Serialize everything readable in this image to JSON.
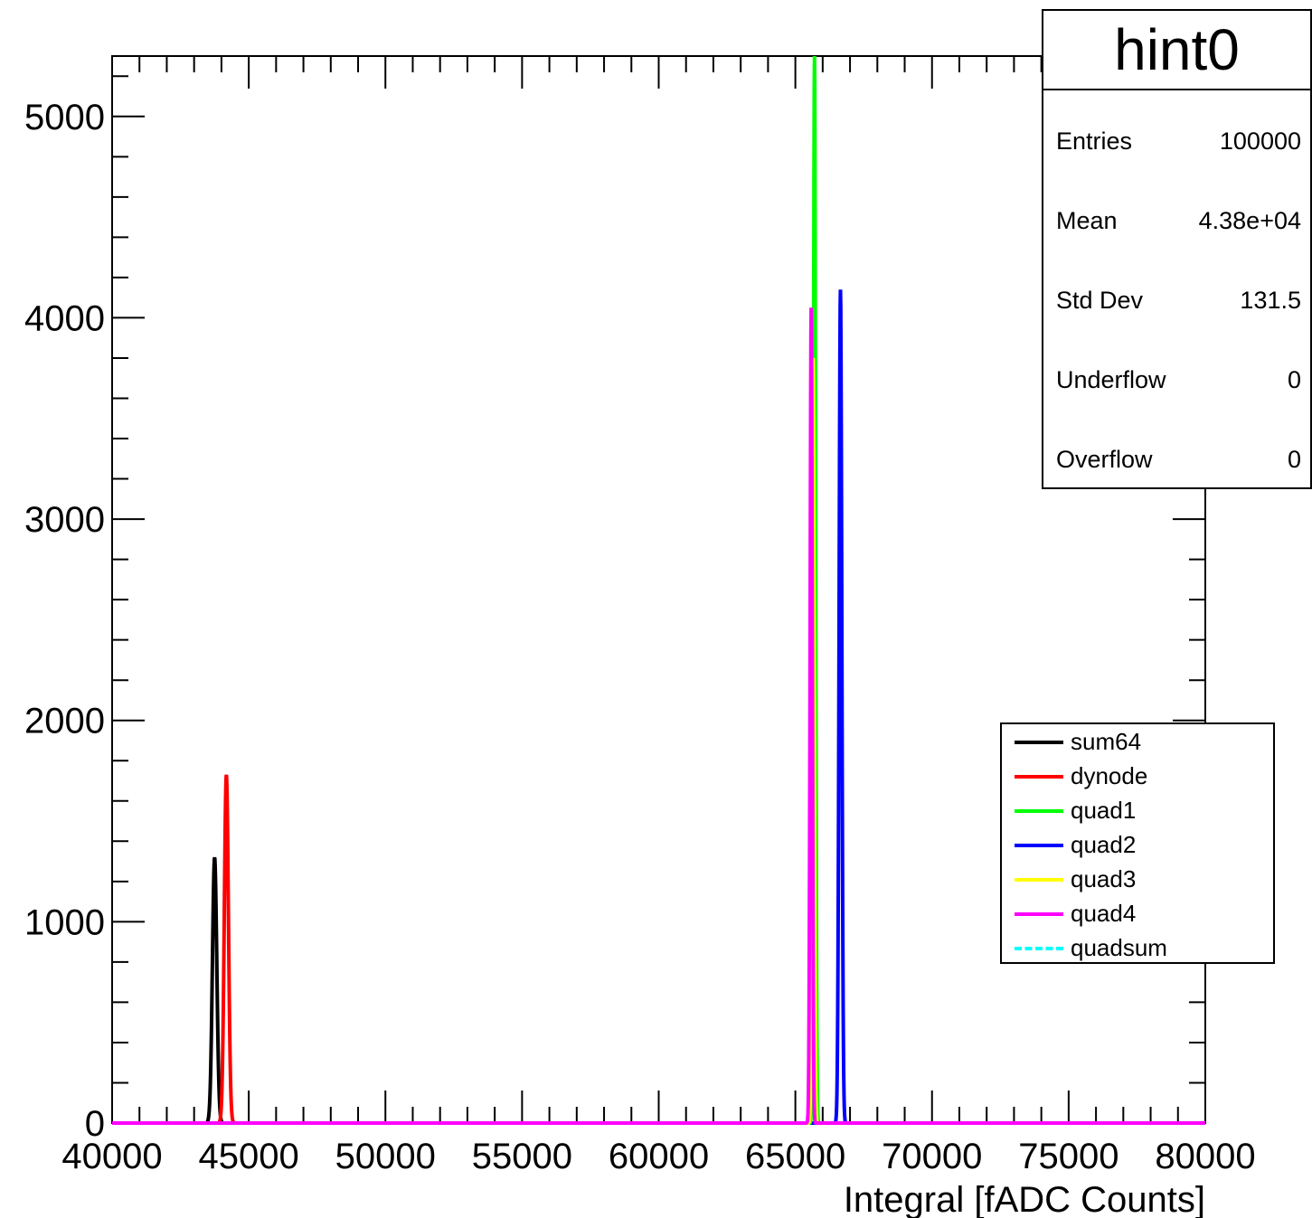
{
  "chart_data": {
    "type": "line",
    "title": "",
    "xlabel": "Integral [fADC Counts]",
    "ylabel": "",
    "xlim": [
      40000,
      80000
    ],
    "ylim": [
      0,
      5300
    ],
    "x_ticks": [
      "40000",
      "45000",
      "50000",
      "55000",
      "60000",
      "65000",
      "70000",
      "75000",
      "80000"
    ],
    "y_ticks": [
      "0",
      "1000",
      "2000",
      "3000",
      "4000",
      "5000"
    ],
    "grid": false,
    "legend_position": "right",
    "series": [
      {
        "name": "sum64",
        "color": "#000000",
        "dashed": false,
        "peak_x": 43750,
        "peak_y": 1320,
        "sigma": 80
      },
      {
        "name": "dynode",
        "color": "#ff0000",
        "dashed": false,
        "peak_x": 44180,
        "peak_y": 1730,
        "sigma": 75
      },
      {
        "name": "quad1",
        "color": "#00ff00",
        "dashed": false,
        "peak_x": 65700,
        "peak_y": 5300,
        "sigma": 40
      },
      {
        "name": "quad2",
        "color": "#0000ff",
        "dashed": false,
        "peak_x": 66650,
        "peak_y": 4140,
        "sigma": 50
      },
      {
        "name": "quad3",
        "color": "#ffff00",
        "dashed": false,
        "peak_x": 65650,
        "peak_y": 3800,
        "sigma": 40
      },
      {
        "name": "quad4",
        "color": "#ff00ff",
        "dashed": false,
        "peak_x": 65580,
        "peak_y": 4050,
        "sigma": 40
      },
      {
        "name": "quadsum",
        "color": "#00ffff",
        "dashed": true,
        "peak_x": 65600,
        "peak_y": 0,
        "sigma": 40
      }
    ]
  },
  "stats": {
    "title": "hint0",
    "rows": [
      {
        "key": "Entries",
        "value": "100000"
      },
      {
        "key": "Mean",
        "value": "4.38e+04"
      },
      {
        "key": "Std Dev",
        "value": "131.5"
      },
      {
        "key": "Underflow",
        "value": "0"
      },
      {
        "key": "Overflow",
        "value": "0"
      }
    ]
  }
}
